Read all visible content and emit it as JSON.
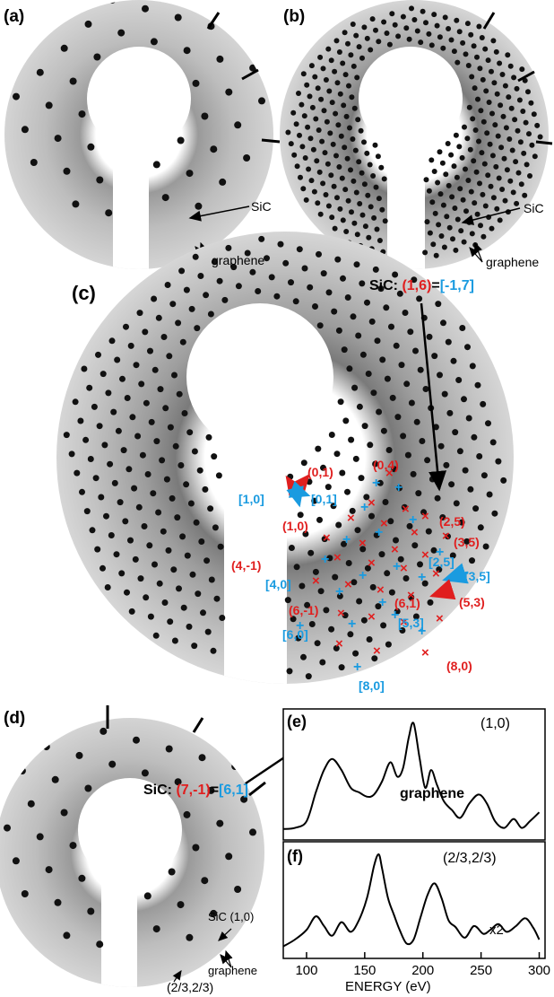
{
  "panels": {
    "a": {
      "label": "(a)",
      "sic": "SiC",
      "graphene": "graphene"
    },
    "b": {
      "label": "(b)",
      "sic": "SiC",
      "graphene": "graphene"
    },
    "c": {
      "label": "(c)",
      "top_callout": {
        "prefix": "SiC: ",
        "red": "(1,6)",
        "eq": "=",
        "blue": "[-1,7]"
      },
      "bottom_callout": {
        "prefix": "SiC: ",
        "red": "(7,-1)",
        "eq": "=",
        "blue": "[6,1]"
      },
      "graphene": "graphene",
      "red_labels": [
        "(0,1)",
        "(1,0)",
        "(0,4)",
        "(2,5)",
        "(3,5)",
        "(4,-1)",
        "(6,-1)",
        "(6,1)",
        "(5,3)",
        "(8,0)"
      ],
      "blue_labels": [
        "[1,0]",
        "[0,1]",
        "[2,5]",
        "[3,5]",
        "[4,0]",
        "[6,0]",
        "[5,3]",
        "[8,0]"
      ]
    },
    "d": {
      "label": "(d)",
      "sic": "SiC (1,0)",
      "graphene": "graphene",
      "spot": "(2/3,2/3)"
    },
    "e": {
      "label": "(e)",
      "title": "(1,0)"
    },
    "f": {
      "label": "(f)",
      "title": "(2/3,2/3)",
      "scale": "x2"
    }
  },
  "chart_data": [
    {
      "type": "line",
      "title": "(1,0)",
      "xlabel": "ENERGY (eV)",
      "xlim": [
        80,
        305
      ],
      "x": [
        80,
        90,
        100,
        108,
        115,
        122,
        130,
        138,
        145,
        152,
        158,
        165,
        172,
        178,
        183,
        188,
        192,
        197,
        202,
        207,
        212,
        218,
        225,
        232,
        240,
        248,
        255,
        262,
        270,
        278,
        285,
        292,
        300
      ],
      "y": [
        0.05,
        0.06,
        0.12,
        0.38,
        0.58,
        0.68,
        0.58,
        0.42,
        0.38,
        0.34,
        0.36,
        0.48,
        0.65,
        0.52,
        0.6,
        0.88,
        1.0,
        0.7,
        0.42,
        0.58,
        0.45,
        0.3,
        0.22,
        0.15,
        0.28,
        0.36,
        0.28,
        0.12,
        0.06,
        0.14,
        0.06,
        0.12,
        0.2
      ]
    },
    {
      "type": "line",
      "title": "(2/3,2/3)",
      "xlabel": "ENERGY (eV)",
      "xlim": [
        80,
        305
      ],
      "xticks": [
        100,
        150,
        200,
        250,
        300
      ],
      "annotation": "x2",
      "x": [
        80,
        90,
        100,
        108,
        115,
        122,
        130,
        138,
        145,
        152,
        158,
        162,
        165,
        170,
        175,
        180,
        186,
        192,
        198,
        204,
        210,
        216,
        222,
        228,
        236,
        244,
        252,
        258,
        265,
        272,
        280,
        288,
        295,
        300
      ],
      "y": [
        0.05,
        0.12,
        0.22,
        0.36,
        0.26,
        0.16,
        0.3,
        0.2,
        0.32,
        0.55,
        0.88,
        1.0,
        0.85,
        0.55,
        0.38,
        0.22,
        0.08,
        0.12,
        0.35,
        0.58,
        0.7,
        0.55,
        0.32,
        0.25,
        0.14,
        0.26,
        0.18,
        0.22,
        0.28,
        0.2,
        0.26,
        0.34,
        0.24,
        0.12
      ]
    }
  ]
}
